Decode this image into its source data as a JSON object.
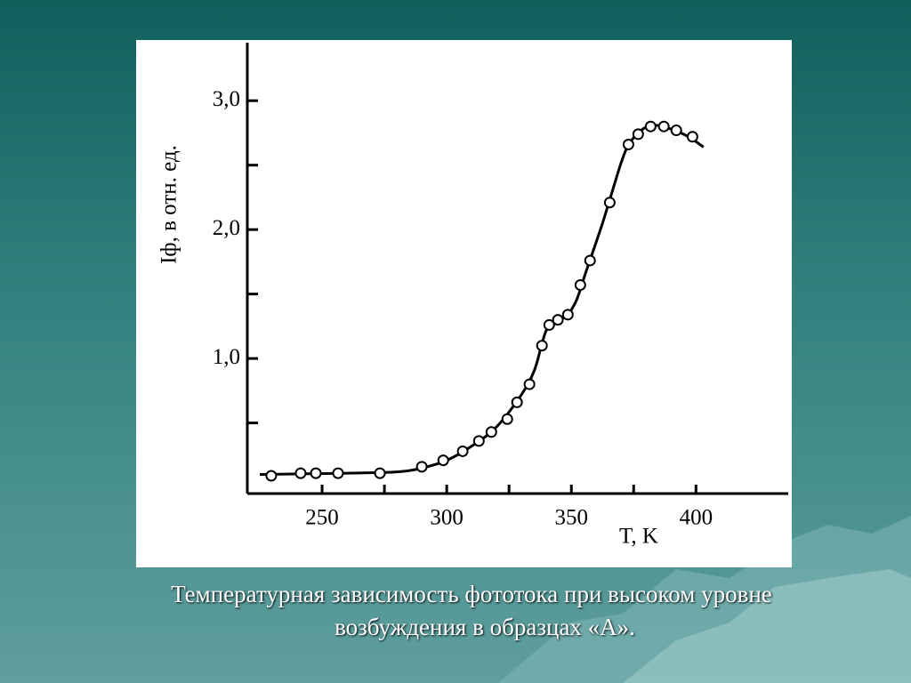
{
  "chart_data": {
    "type": "scatter",
    "caption": [
      "Температурная зависимость фототока при высоком уровне",
      "возбуждения в образцах «А»."
    ],
    "x_label": "T, K",
    "y_label": "Iф, в отн. ед.",
    "xlim": [
      220,
      437
    ],
    "ylim": [
      -0.048,
      3.45
    ],
    "xticks": [
      250,
      300,
      350,
      400
    ],
    "xticks_minor": [
      275,
      325,
      375
    ],
    "yticks": [
      {
        "value": 1.0,
        "label": "1,0"
      },
      {
        "value": 2.0,
        "label": "2,0"
      },
      {
        "value": 3.0,
        "label": "3,0"
      }
    ],
    "yticks_minor": [
      0.5,
      1.5,
      2.5
    ],
    "color": "#000000",
    "series": [
      {
        "x": [
          229.6,
          241.4,
          247.5,
          256.4,
          273.2,
          290,
          298.6,
          306.4,
          312.9,
          317.9,
          324.3,
          328.2,
          333.2,
          338.2,
          341.1,
          344.6,
          348.6,
          353.6,
          357.5,
          365.4,
          372.9,
          376.8,
          381.8,
          387.1,
          392.1,
          398.6
        ],
        "values": [
          0.09,
          0.11,
          0.11,
          0.11,
          0.11,
          0.16,
          0.21,
          0.28,
          0.36,
          0.43,
          0.53,
          0.66,
          0.8,
          1.1,
          1.26,
          1.3,
          1.34,
          1.57,
          1.76,
          2.21,
          2.66,
          2.74,
          2.8,
          2.8,
          2.77,
          2.72
        ]
      },
      {
        "x": [
          225,
          260,
          280,
          290,
          300,
          310,
          320,
          330,
          335,
          338,
          340,
          343,
          348,
          352,
          356,
          362,
          366,
          370,
          373,
          378,
          383,
          390,
          397,
          403
        ],
        "values": [
          0.1,
          0.11,
          0.12,
          0.15,
          0.21,
          0.32,
          0.47,
          0.72,
          0.9,
          1.1,
          1.22,
          1.28,
          1.33,
          1.45,
          1.68,
          2.02,
          2.27,
          2.52,
          2.66,
          2.77,
          2.81,
          2.78,
          2.72,
          2.64
        ]
      }
    ]
  }
}
